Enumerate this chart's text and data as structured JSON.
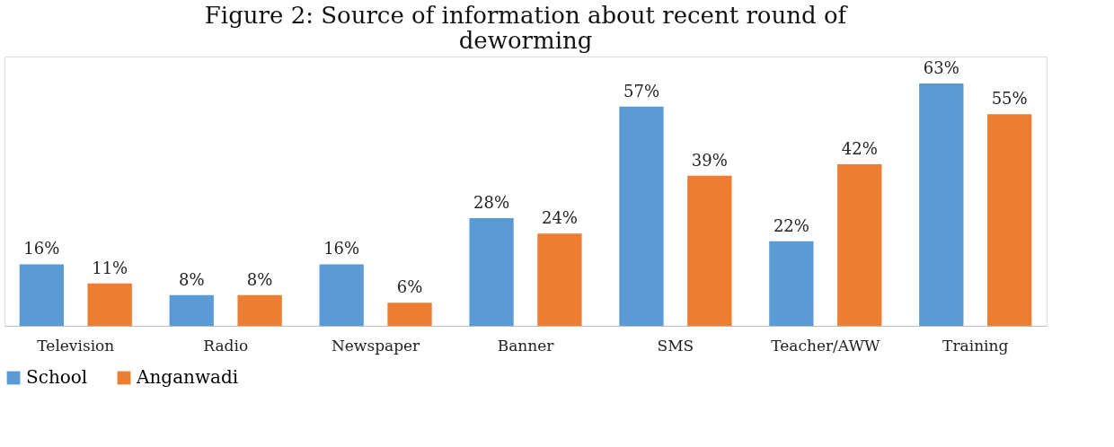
{
  "chart_data": {
    "type": "bar",
    "title": "Figure 2: Source of information about recent round of deworming",
    "categories": [
      "Television",
      "Radio",
      "Newspaper",
      "Banner",
      "SMS",
      "Teacher/AWW",
      "Training"
    ],
    "series": [
      {
        "name": "School",
        "color": "#5b9bd5",
        "values": [
          16,
          8,
          16,
          28,
          57,
          22,
          63
        ],
        "value_labels": [
          "16%",
          "8%",
          "16%",
          "28%",
          "57%",
          "22%",
          "63%"
        ]
      },
      {
        "name": "Anganwadi",
        "color": "#ed7d31",
        "values": [
          11,
          8,
          6,
          24,
          39,
          42,
          55
        ],
        "value_labels": [
          "11%",
          "8%",
          "6%",
          "24%",
          "39%",
          "42%",
          "55%"
        ]
      }
    ],
    "ylim": [
      0,
      70
    ],
    "tick_labels": "x",
    "grid": false,
    "legend": "bottom"
  }
}
